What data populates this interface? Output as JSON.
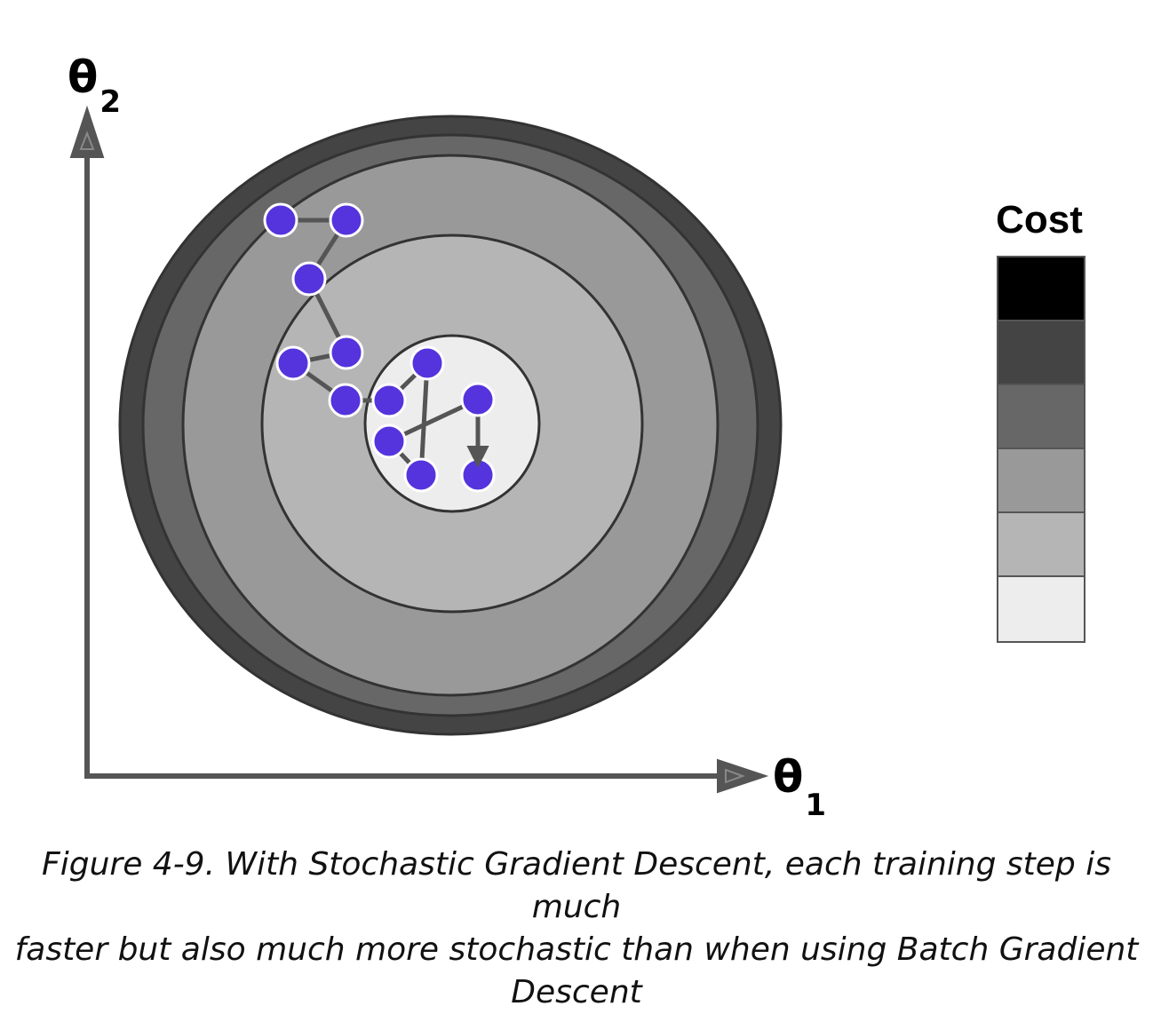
{
  "axes": {
    "theta1": {
      "symbol": "θ",
      "subscript": "1"
    },
    "theta2": {
      "symbol": "θ",
      "subscript": "2"
    }
  },
  "legend": {
    "title": "Cost",
    "levels": [
      "#000000",
      "#444444",
      "#676767",
      "#999999",
      "#b5b5b5",
      "#ededed"
    ]
  },
  "contours": {
    "colors": [
      "#444444",
      "#676767",
      "#999999",
      "#b5b5b5",
      "#ededed"
    ],
    "outline": "#333333"
  },
  "path": {
    "point_color": "#5533dd",
    "point_outline": "#ffffff",
    "line_color": "#555555",
    "steps": 13
  },
  "caption": {
    "line1": "Figure 4-9. With Stochastic Gradient Descent, each training step is much",
    "line2": "faster but also much more stochastic than when using Batch Gradient",
    "line3": "Descent"
  }
}
